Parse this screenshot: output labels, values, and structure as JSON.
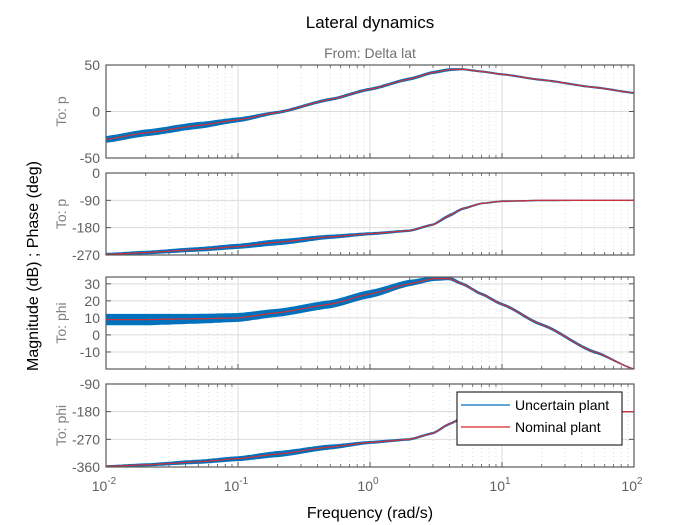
{
  "chart_data": {
    "type": "line",
    "title": "Lateral dynamics",
    "subtitle": "From: Delta lat",
    "xlabel": "Frequency  (rad/s)",
    "ylabel": "Magnitude (dB) ; Phase (deg)",
    "xscale": "log",
    "xlim": [
      0.01,
      100
    ],
    "x_tick_labels": [
      {
        "base": "10",
        "exp": "-2"
      },
      {
        "base": "10",
        "exp": "-1"
      },
      {
        "base": "10",
        "exp": "0"
      },
      {
        "base": "10",
        "exp": "1"
      },
      {
        "base": "10",
        "exp": "2"
      }
    ],
    "grid": true,
    "legend": {
      "placement": "inside-bottom-right-panel",
      "entries": [
        {
          "name": "Uncertain plant",
          "color": "#0072bd"
        },
        {
          "name": "Nominal plant",
          "color": "#d62728"
        }
      ]
    },
    "panels": [
      {
        "id": "mag-p",
        "row_label": "To: p",
        "kind": "magnitude",
        "ylim": [
          -50,
          50
        ],
        "yticks": [
          -50,
          0,
          50
        ],
        "x": [
          0.01,
          0.02,
          0.05,
          0.1,
          0.2,
          0.5,
          1,
          2,
          3,
          4,
          5,
          7,
          10,
          20,
          50,
          100
        ],
        "nominal": [
          -30,
          -23,
          -15,
          -9,
          -1,
          13,
          24,
          35,
          42,
          45,
          45.5,
          43,
          40,
          34,
          26,
          20
        ],
        "band_lower": [
          -33,
          -26,
          -18,
          -11,
          -2,
          12,
          23,
          34,
          41,
          44,
          45,
          42.5,
          39.5,
          33.5,
          25.5,
          19.5
        ],
        "band_upper": [
          -27,
          -20,
          -12,
          -7,
          0,
          14,
          25,
          36,
          43,
          46,
          46,
          43.5,
          40.5,
          34.5,
          26.5,
          20.5
        ]
      },
      {
        "id": "phase-p",
        "row_label": "To: p",
        "kind": "phase",
        "ylim": [
          -270,
          0
        ],
        "yticks": [
          0,
          -90,
          -180,
          -270
        ],
        "x": [
          0.01,
          0.02,
          0.05,
          0.1,
          0.2,
          0.5,
          1,
          2,
          3,
          4,
          5,
          7,
          10,
          20,
          50,
          100
        ],
        "nominal": [
          -268,
          -262,
          -252,
          -242,
          -228,
          -210,
          -200,
          -190,
          -170,
          -140,
          -118,
          -100,
          -93,
          -90,
          -90,
          -90
        ],
        "band_lower": [
          -270,
          -266,
          -257,
          -248,
          -236,
          -215,
          -203,
          -192,
          -172,
          -143,
          -120,
          -101,
          -94,
          -91,
          -90,
          -90
        ],
        "band_upper": [
          -265,
          -258,
          -246,
          -235,
          -220,
          -205,
          -197,
          -188,
          -168,
          -137,
          -116,
          -99,
          -92,
          -90,
          -90,
          -90
        ]
      },
      {
        "id": "mag-phi",
        "row_label": "To: phi",
        "kind": "magnitude",
        "ylim": [
          -20,
          34
        ],
        "yticks": [
          30,
          20,
          10,
          0,
          -10
        ],
        "x": [
          0.01,
          0.02,
          0.05,
          0.1,
          0.2,
          0.5,
          1,
          2,
          3,
          4,
          5,
          7,
          10,
          20,
          50,
          100
        ],
        "nominal": [
          9,
          9,
          9.5,
          10,
          13,
          18,
          24,
          30,
          33,
          33,
          30,
          24,
          18,
          6,
          -10,
          -20
        ],
        "band_lower": [
          6,
          6,
          7,
          8,
          11,
          16,
          22,
          29,
          32,
          32.5,
          29.5,
          23.5,
          17.5,
          5.5,
          -10.5,
          -20
        ],
        "band_upper": [
          12,
          12,
          12,
          12.5,
          15,
          20,
          26,
          32,
          34,
          34,
          30.5,
          24.5,
          18.5,
          6.5,
          -9.5,
          -20
        ]
      },
      {
        "id": "phase-phi",
        "row_label": "To: phi",
        "kind": "phase",
        "ylim": [
          -360,
          -90
        ],
        "yticks": [
          -90,
          -180,
          -270,
          -360
        ],
        "x": [
          0.01,
          0.02,
          0.05,
          0.1,
          0.2,
          0.5,
          1,
          2,
          3,
          4,
          5,
          7,
          10,
          20,
          50,
          100
        ],
        "nominal": [
          -358,
          -353,
          -343,
          -333,
          -318,
          -295,
          -280,
          -270,
          -250,
          -220,
          -200,
          -186,
          -182,
          -180,
          -180,
          -180
        ],
        "band_lower": [
          -360,
          -356,
          -348,
          -339,
          -326,
          -301,
          -283,
          -272,
          -252,
          -222,
          -202,
          -187,
          -183,
          -180,
          -180,
          -180
        ],
        "band_upper": [
          -356,
          -350,
          -338,
          -327,
          -310,
          -289,
          -277,
          -268,
          -248,
          -218,
          -198,
          -185,
          -181,
          -180,
          -180,
          -180
        ]
      }
    ]
  }
}
